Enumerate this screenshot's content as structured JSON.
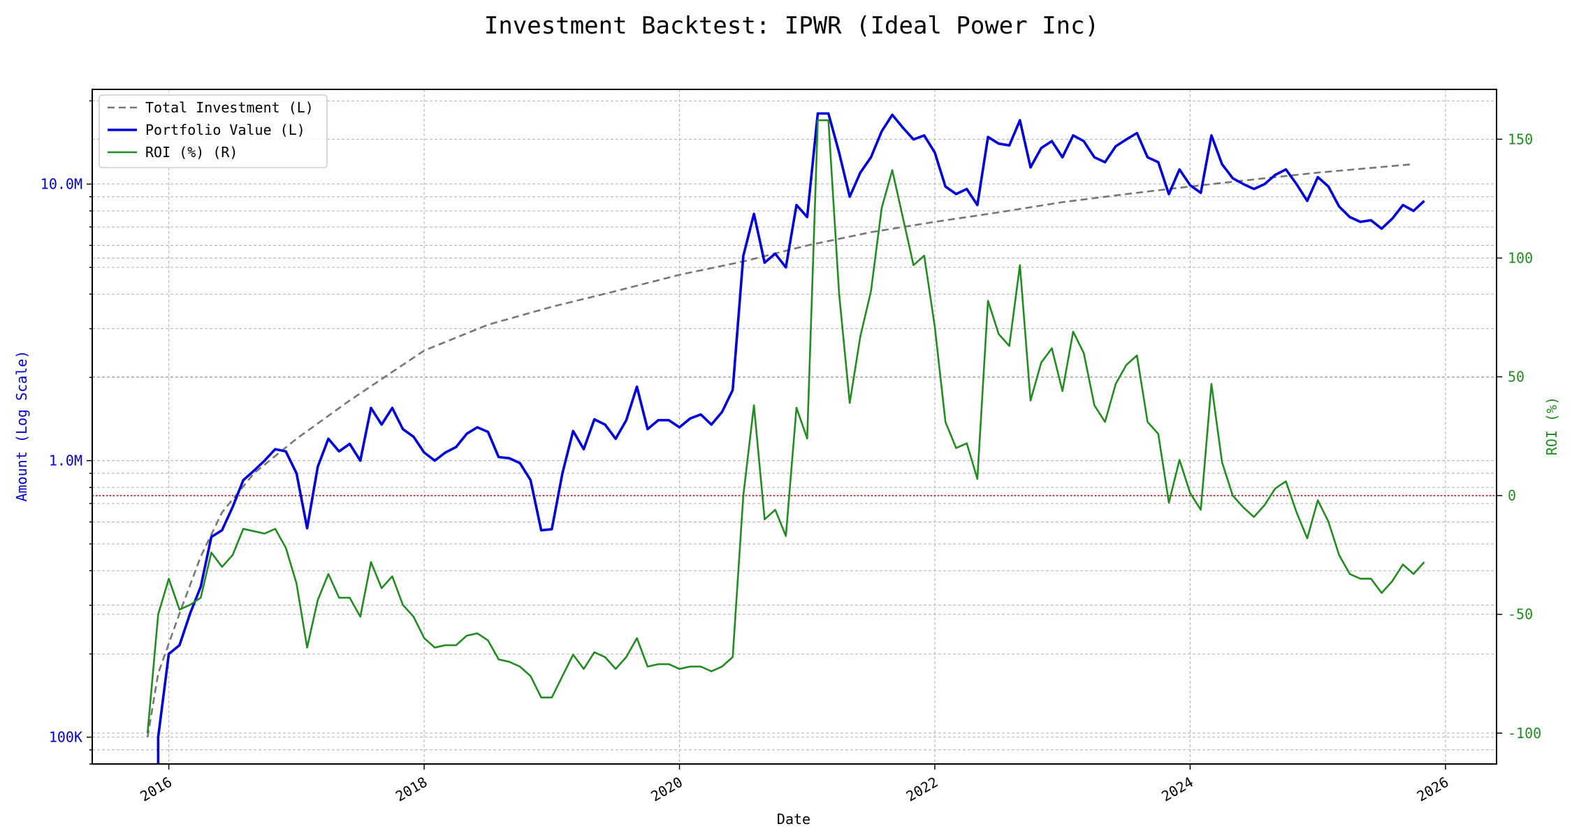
{
  "chart_data": {
    "type": "line",
    "title": "Investment Backtest: IPWR (Ideal Power Inc)",
    "xlabel": "Date",
    "ylabel_left": "Amount (Log Scale)",
    "ylabel_right": "ROI (%)",
    "x_ticks": [
      "2016",
      "2018",
      "2020",
      "2022",
      "2024",
      "2026"
    ],
    "left_axis": {
      "scale": "log",
      "ylim": [
        80000,
        22000000
      ],
      "tick_values": [
        100000,
        1000000,
        10000000
      ],
      "tick_labels": [
        "100K",
        "1.0M",
        "10.0M"
      ],
      "color": "#0000cc"
    },
    "right_axis": {
      "ylim": [
        -113,
        171
      ],
      "tick_values": [
        -100,
        -50,
        0,
        50,
        100,
        150
      ],
      "tick_labels": [
        "-100",
        "-50",
        "0",
        "50",
        "100",
        "150"
      ],
      "color": "#228b22"
    },
    "reference_line": {
      "axis": "right",
      "value": 0,
      "color": "#cc0000",
      "style": "dotted"
    },
    "grid": true,
    "legend_position": "top-left",
    "series": [
      {
        "name": "Total Investment (L)",
        "axis": "left",
        "color": "#777777",
        "style": "dashed",
        "points": [
          [
            "2015-11",
            100000
          ],
          [
            "2015-12",
            170000
          ],
          [
            "2016-02",
            280000
          ],
          [
            "2016-04",
            450000
          ],
          [
            "2016-06",
            650000
          ],
          [
            "2016-09",
            900000
          ],
          [
            "2017-01",
            1200000
          ],
          [
            "2017-06",
            1650000
          ],
          [
            "2018-01",
            2500000
          ],
          [
            "2018-07",
            3100000
          ],
          [
            "2019-01",
            3600000
          ],
          [
            "2019-07",
            4100000
          ],
          [
            "2020-01",
            4700000
          ],
          [
            "2020-07",
            5250000
          ],
          [
            "2021-01",
            6000000
          ],
          [
            "2021-07",
            6700000
          ],
          [
            "2022-01",
            7300000
          ],
          [
            "2022-07",
            7900000
          ],
          [
            "2023-01",
            8600000
          ],
          [
            "2023-07",
            9200000
          ],
          [
            "2024-01",
            9800000
          ],
          [
            "2024-07",
            10400000
          ],
          [
            "2025-01",
            11000000
          ],
          [
            "2025-10",
            11800000
          ]
        ]
      },
      {
        "name": "Portfolio Value (L)",
        "axis": "left",
        "color": "#0000dd",
        "style": "solid",
        "points": [
          [
            "2015-12",
            60000
          ],
          [
            "2015-12",
            100000
          ],
          [
            "2016-01",
            200000
          ],
          [
            "2016-02",
            215000
          ],
          [
            "2016-03",
            280000
          ],
          [
            "2016-04",
            350000
          ],
          [
            "2016-05",
            530000
          ],
          [
            "2016-06",
            560000
          ],
          [
            "2016-07",
            680000
          ],
          [
            "2016-08",
            850000
          ],
          [
            "2016-09",
            920000
          ],
          [
            "2016-10",
            1000000
          ],
          [
            "2016-11",
            1100000
          ],
          [
            "2016-12",
            1080000
          ],
          [
            "2017-01",
            900000
          ],
          [
            "2017-02",
            570000
          ],
          [
            "2017-03",
            950000
          ],
          [
            "2017-04",
            1200000
          ],
          [
            "2017-05",
            1080000
          ],
          [
            "2017-06",
            1150000
          ],
          [
            "2017-07",
            1000000
          ],
          [
            "2017-08",
            1550000
          ],
          [
            "2017-09",
            1350000
          ],
          [
            "2017-10",
            1550000
          ],
          [
            "2017-11",
            1300000
          ],
          [
            "2017-12",
            1220000
          ],
          [
            "2018-01",
            1070000
          ],
          [
            "2018-02",
            1000000
          ],
          [
            "2018-03",
            1070000
          ],
          [
            "2018-04",
            1120000
          ],
          [
            "2018-05",
            1250000
          ],
          [
            "2018-06",
            1320000
          ],
          [
            "2018-07",
            1270000
          ],
          [
            "2018-08",
            1030000
          ],
          [
            "2018-09",
            1020000
          ],
          [
            "2018-10",
            980000
          ],
          [
            "2018-11",
            850000
          ],
          [
            "2018-12",
            560000
          ],
          [
            "2019-01",
            565000
          ],
          [
            "2019-02",
            900000
          ],
          [
            "2019-03",
            1280000
          ],
          [
            "2019-04",
            1100000
          ],
          [
            "2019-05",
            1410000
          ],
          [
            "2019-06",
            1350000
          ],
          [
            "2019-07",
            1200000
          ],
          [
            "2019-08",
            1400000
          ],
          [
            "2019-09",
            1850000
          ],
          [
            "2019-10",
            1300000
          ],
          [
            "2019-11",
            1400000
          ],
          [
            "2019-12",
            1400000
          ],
          [
            "2020-01",
            1320000
          ],
          [
            "2020-02",
            1420000
          ],
          [
            "2020-03",
            1470000
          ],
          [
            "2020-04",
            1350000
          ],
          [
            "2020-05",
            1500000
          ],
          [
            "2020-06",
            1800000
          ],
          [
            "2020-07",
            5500000
          ],
          [
            "2020-08",
            7800000
          ],
          [
            "2020-09",
            5200000
          ],
          [
            "2020-10",
            5600000
          ],
          [
            "2020-11",
            5000000
          ],
          [
            "2020-12",
            8400000
          ],
          [
            "2021-01",
            7600000
          ],
          [
            "2021-02",
            18000000
          ],
          [
            "2021-03",
            18000000
          ],
          [
            "2021-04",
            13000000
          ],
          [
            "2021-05",
            9000000
          ],
          [
            "2021-06",
            11000000
          ],
          [
            "2021-07",
            12500000
          ],
          [
            "2021-08",
            15500000
          ],
          [
            "2021-09",
            17800000
          ],
          [
            "2021-10",
            16000000
          ],
          [
            "2021-11",
            14500000
          ],
          [
            "2021-12",
            15000000
          ],
          [
            "2022-01",
            13000000
          ],
          [
            "2022-02",
            9800000
          ],
          [
            "2022-03",
            9200000
          ],
          [
            "2022-04",
            9600000
          ],
          [
            "2022-05",
            8400000
          ],
          [
            "2022-06",
            14800000
          ],
          [
            "2022-07",
            14000000
          ],
          [
            "2022-08",
            13800000
          ],
          [
            "2022-09",
            17000000
          ],
          [
            "2022-10",
            11500000
          ],
          [
            "2022-11",
            13500000
          ],
          [
            "2022-12",
            14300000
          ],
          [
            "2023-01",
            12500000
          ],
          [
            "2023-02",
            15000000
          ],
          [
            "2023-03",
            14300000
          ],
          [
            "2023-04",
            12500000
          ],
          [
            "2023-05",
            12000000
          ],
          [
            "2023-06",
            13700000
          ],
          [
            "2023-07",
            14500000
          ],
          [
            "2023-08",
            15300000
          ],
          [
            "2023-09",
            12500000
          ],
          [
            "2023-10",
            12000000
          ],
          [
            "2023-11",
            9200000
          ],
          [
            "2023-12",
            11300000
          ],
          [
            "2024-01",
            9900000
          ],
          [
            "2024-02",
            9300000
          ],
          [
            "2024-03",
            15000000
          ],
          [
            "2024-04",
            11800000
          ],
          [
            "2024-05",
            10500000
          ],
          [
            "2024-06",
            10000000
          ],
          [
            "2024-07",
            9600000
          ],
          [
            "2024-08",
            10000000
          ],
          [
            "2024-09",
            10800000
          ],
          [
            "2024-10",
            11300000
          ],
          [
            "2024-11",
            10000000
          ],
          [
            "2024-12",
            8700000
          ],
          [
            "2025-01",
            10600000
          ],
          [
            "2025-02",
            9800000
          ],
          [
            "2025-03",
            8300000
          ],
          [
            "2025-04",
            7600000
          ],
          [
            "2025-05",
            7300000
          ],
          [
            "2025-06",
            7400000
          ],
          [
            "2025-07",
            6900000
          ],
          [
            "2025-08",
            7500000
          ],
          [
            "2025-09",
            8400000
          ],
          [
            "2025-10",
            8000000
          ],
          [
            "2025-11",
            8700000
          ]
        ]
      },
      {
        "name": "ROI (%) (R)",
        "axis": "right",
        "color": "#228b22",
        "style": "solid",
        "points": [
          [
            "2015-11",
            -100
          ],
          [
            "2015-12",
            -50
          ],
          [
            "2016-01",
            -35
          ],
          [
            "2016-02",
            -48
          ],
          [
            "2016-03",
            -46
          ],
          [
            "2016-04",
            -43
          ],
          [
            "2016-05",
            -24
          ],
          [
            "2016-06",
            -30
          ],
          [
            "2016-07",
            -25
          ],
          [
            "2016-08",
            -14
          ],
          [
            "2016-09",
            -15
          ],
          [
            "2016-10",
            -16
          ],
          [
            "2016-11",
            -14
          ],
          [
            "2016-12",
            -22
          ],
          [
            "2017-01",
            -37
          ],
          [
            "2017-02",
            -64
          ],
          [
            "2017-03",
            -44
          ],
          [
            "2017-04",
            -33
          ],
          [
            "2017-05",
            -43
          ],
          [
            "2017-06",
            -43
          ],
          [
            "2017-07",
            -51
          ],
          [
            "2017-08",
            -28
          ],
          [
            "2017-09",
            -39
          ],
          [
            "2017-10",
            -34
          ],
          [
            "2017-11",
            -46
          ],
          [
            "2017-12",
            -51
          ],
          [
            "2018-01",
            -60
          ],
          [
            "2018-02",
            -64
          ],
          [
            "2018-03",
            -63
          ],
          [
            "2018-04",
            -63
          ],
          [
            "2018-05",
            -59
          ],
          [
            "2018-06",
            -58
          ],
          [
            "2018-07",
            -61
          ],
          [
            "2018-08",
            -69
          ],
          [
            "2018-09",
            -70
          ],
          [
            "2018-10",
            -72
          ],
          [
            "2018-11",
            -76
          ],
          [
            "2018-12",
            -85
          ],
          [
            "2019-01",
            -85
          ],
          [
            "2019-02",
            -76
          ],
          [
            "2019-03",
            -67
          ],
          [
            "2019-04",
            -73
          ],
          [
            "2019-05",
            -66
          ],
          [
            "2019-06",
            -68
          ],
          [
            "2019-07",
            -73
          ],
          [
            "2019-08",
            -68
          ],
          [
            "2019-09",
            -60
          ],
          [
            "2019-10",
            -72
          ],
          [
            "2019-11",
            -71
          ],
          [
            "2019-12",
            -71
          ],
          [
            "2020-01",
            -73
          ],
          [
            "2020-02",
            -72
          ],
          [
            "2020-03",
            -72
          ],
          [
            "2020-04",
            -74
          ],
          [
            "2020-05",
            -72
          ],
          [
            "2020-06",
            -68
          ],
          [
            "2020-07",
            0
          ],
          [
            "2020-08",
            38
          ],
          [
            "2020-09",
            -10
          ],
          [
            "2020-10",
            -6
          ],
          [
            "2020-11",
            -17
          ],
          [
            "2020-12",
            37
          ],
          [
            "2021-01",
            24
          ],
          [
            "2021-02",
            158
          ],
          [
            "2021-03",
            158
          ],
          [
            "2021-04",
            85
          ],
          [
            "2021-05",
            39
          ],
          [
            "2021-06",
            67
          ],
          [
            "2021-07",
            86
          ],
          [
            "2021-08",
            121
          ],
          [
            "2021-09",
            137
          ],
          [
            "2021-10",
            117
          ],
          [
            "2021-11",
            97
          ],
          [
            "2021-12",
            101
          ],
          [
            "2022-01",
            71
          ],
          [
            "2022-02",
            31
          ],
          [
            "2022-03",
            20
          ],
          [
            "2022-04",
            22
          ],
          [
            "2022-05",
            7
          ],
          [
            "2022-06",
            82
          ],
          [
            "2022-07",
            68
          ],
          [
            "2022-08",
            63
          ],
          [
            "2022-09",
            97
          ],
          [
            "2022-10",
            40
          ],
          [
            "2022-11",
            56
          ],
          [
            "2022-12",
            62
          ],
          [
            "2023-01",
            44
          ],
          [
            "2023-02",
            69
          ],
          [
            "2023-03",
            60
          ],
          [
            "2023-04",
            38
          ],
          [
            "2023-05",
            31
          ],
          [
            "2023-06",
            47
          ],
          [
            "2023-07",
            55
          ],
          [
            "2023-08",
            59
          ],
          [
            "2023-09",
            31
          ],
          [
            "2023-10",
            26
          ],
          [
            "2023-11",
            -3
          ],
          [
            "2023-12",
            15
          ],
          [
            "2024-01",
            1
          ],
          [
            "2024-02",
            -6
          ],
          [
            "2024-03",
            47
          ],
          [
            "2024-04",
            14
          ],
          [
            "2024-05",
            0
          ],
          [
            "2024-06",
            -5
          ],
          [
            "2024-07",
            -9
          ],
          [
            "2024-08",
            -4
          ],
          [
            "2024-09",
            3
          ],
          [
            "2024-10",
            6
          ],
          [
            "2024-11",
            -7
          ],
          [
            "2024-12",
            -18
          ],
          [
            "2025-01",
            -2
          ],
          [
            "2025-02",
            -11
          ],
          [
            "2025-03",
            -25
          ],
          [
            "2025-04",
            -33
          ],
          [
            "2025-05",
            -35
          ],
          [
            "2025-06",
            -35
          ],
          [
            "2025-07",
            -41
          ],
          [
            "2025-08",
            -36
          ],
          [
            "2025-09",
            -29
          ],
          [
            "2025-10",
            -33
          ],
          [
            "2025-11",
            -28
          ]
        ]
      }
    ]
  }
}
